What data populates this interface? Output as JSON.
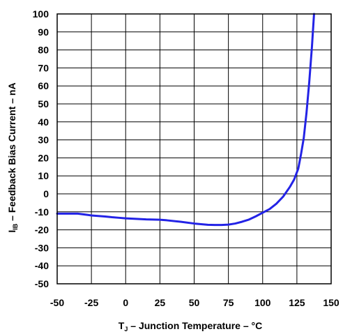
{
  "chart_data": {
    "type": "line",
    "xlabel": {
      "symbol": "T",
      "subscript": "J",
      "text": " – Junction Temperature – °C"
    },
    "ylabel": {
      "symbol": "I",
      "subscript": "IB",
      "text": " – Feedback Bias Current – nA"
    },
    "xlim": [
      -50,
      150
    ],
    "ylim": [
      -50,
      100
    ],
    "xticks": [
      -50,
      -25,
      0,
      25,
      50,
      75,
      100,
      125,
      150
    ],
    "yticks": [
      100,
      90,
      80,
      70,
      60,
      50,
      40,
      30,
      20,
      10,
      0,
      -10,
      -20,
      -30,
      -40,
      -50
    ],
    "grid": true,
    "line_color": "#2323e6",
    "series": [
      {
        "x": [
          -50,
          -40,
          -35,
          -30,
          -25,
          -20,
          -15,
          -10,
          -5,
          0,
          5,
          10,
          15,
          20,
          25,
          30,
          40,
          50,
          60,
          65,
          70,
          75,
          80,
          85,
          90,
          95,
          100,
          105,
          110,
          115,
          120,
          123,
          126,
          128,
          130,
          132,
          134,
          136,
          137.5
        ],
        "y": [
          -11,
          -11,
          -11,
          -11.5,
          -12,
          -12.3,
          -12.6,
          -13,
          -13.3,
          -13.6,
          -13.8,
          -14,
          -14.2,
          -14.3,
          -14.4,
          -14.7,
          -15.5,
          -16.5,
          -17.2,
          -17.3,
          -17.3,
          -17.1,
          -16.5,
          -15.5,
          -14.3,
          -12.5,
          -10.5,
          -8.5,
          -5.5,
          -1.5,
          4,
          8,
          14,
          22,
          31,
          45,
          62,
          82,
          100
        ]
      }
    ]
  }
}
